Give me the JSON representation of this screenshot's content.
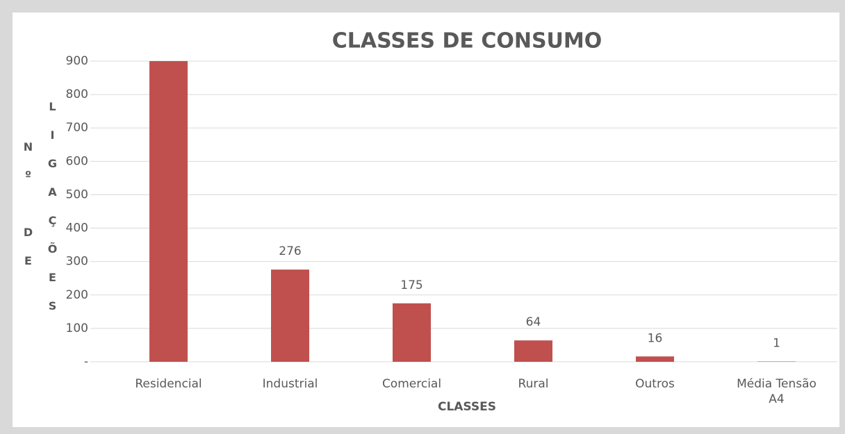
{
  "chart_data": {
    "type": "bar",
    "title": "CLASSES DE CONSUMO",
    "x_label": "CLASSES",
    "y_label": "Nº DE LIGAÇÕES",
    "categories": [
      "Residencial",
      "Industrial",
      "Comercial",
      "Rural",
      "Outros",
      "Média Tensão A4"
    ],
    "values": [
      900,
      276,
      175,
      64,
      16,
      1
    ],
    "color": "#c0504d",
    "ylim": [
      0,
      900
    ],
    "yticks": [
      {
        "value": 0,
        "label": "-"
      },
      100,
      200,
      300,
      400,
      500,
      600,
      700,
      800,
      900
    ],
    "grid": true,
    "data_labels": true
  }
}
